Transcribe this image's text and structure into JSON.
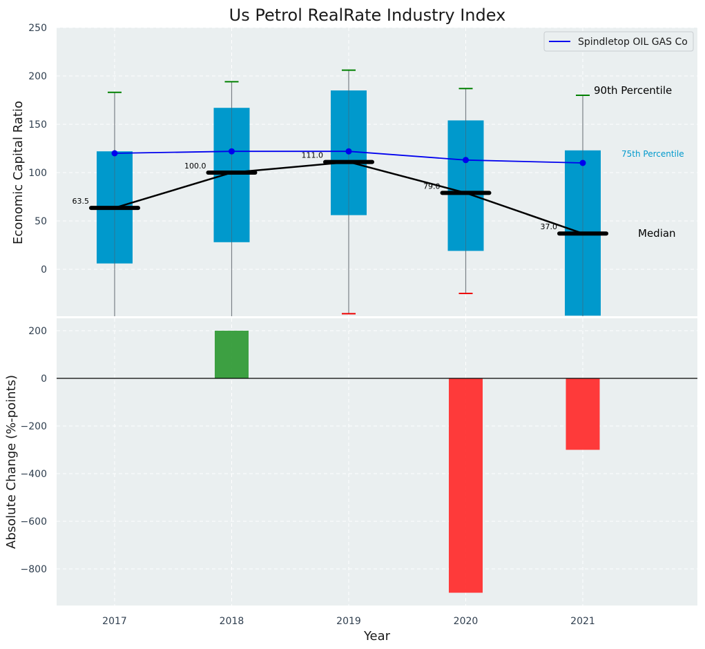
{
  "chart_data": [
    {
      "type": "box",
      "title": "Us Petrol RealRate Industry Index",
      "xlabel": "",
      "ylabel": "Economic Capital Ratio",
      "ylim": [
        -48,
        250
      ],
      "yticks": [
        0,
        50,
        100,
        150,
        200,
        250
      ],
      "categories": [
        "2017",
        "2018",
        "2019",
        "2020",
        "2021"
      ],
      "boxes": [
        {
          "year": "2017",
          "q1": 6,
          "q3": 122,
          "whisker_high": 183,
          "whisker_low": null,
          "median": 63.5,
          "median_label": "63.5"
        },
        {
          "year": "2018",
          "q1": 28,
          "q3": 167,
          "whisker_high": 194,
          "whisker_low": null,
          "median": 100.0,
          "median_label": "100.0"
        },
        {
          "year": "2019",
          "q1": 56,
          "q3": 185,
          "whisker_high": 206,
          "whisker_low": -46,
          "median": 111.0,
          "median_label": "111.0"
        },
        {
          "year": "2020",
          "q1": 19,
          "q3": 154,
          "whisker_high": 187,
          "whisker_low": -25,
          "median": 79.0,
          "median_label": "79.0"
        },
        {
          "year": "2021",
          "q1": -48,
          "q3": 123,
          "whisker_high": 180,
          "whisker_low": null,
          "median": 37.0,
          "median_label": "37.0"
        }
      ],
      "series": [
        {
          "name": "Spindletop OIL GAS Co",
          "color": "#0000ee",
          "values": [
            120,
            122,
            122,
            113,
            110
          ]
        }
      ],
      "annotations": {
        "p90": "90th Percentile",
        "p75": "75th Percentile",
        "median": "Median"
      },
      "colors": {
        "box": "#0099cc",
        "whisker_high": "#008000",
        "whisker_low": "#ee0000",
        "median_line": "#000000"
      },
      "legend": "top-right"
    },
    {
      "type": "bar",
      "xlabel": "Year",
      "ylabel": "Absolute Change (%-points)",
      "ylim": [
        -950,
        250
      ],
      "yticks": [
        200,
        0,
        -200,
        -400,
        -600,
        -800
      ],
      "ytick_labels": [
        "200",
        "0",
        "−200",
        "−400",
        "−600",
        "−800"
      ],
      "categories": [
        "2017",
        "2018",
        "2019",
        "2020",
        "2021"
      ],
      "values": [
        0,
        200,
        0,
        -900,
        -300
      ],
      "colors": {
        "positive": "#2e9933",
        "negative": "#ff2a2a"
      }
    }
  ]
}
